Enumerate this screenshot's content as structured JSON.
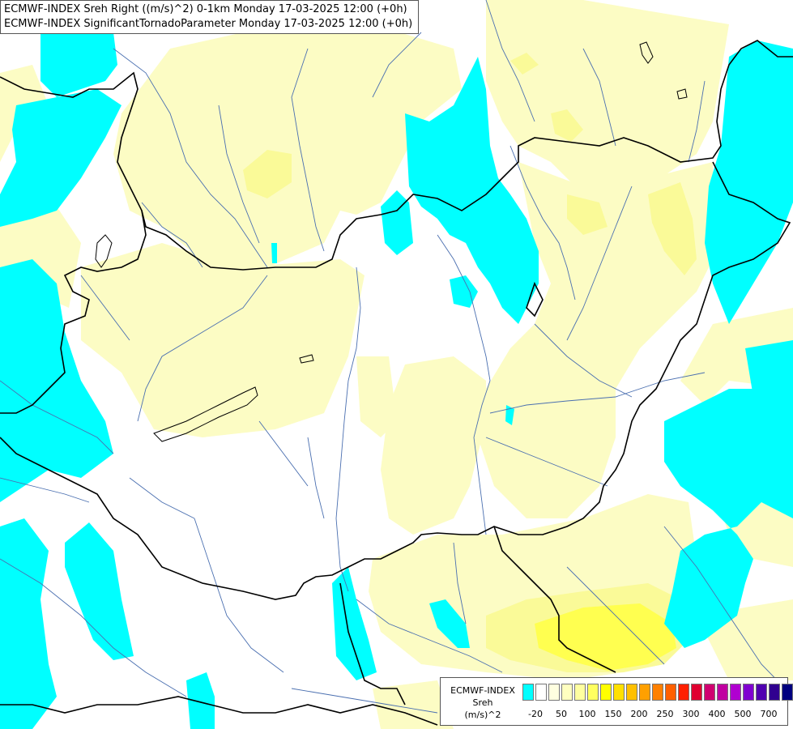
{
  "header": {
    "line1": "ECMWF-INDEX Sreh Right ((m/s)^2) 0-1km Monday 17-03-2025 12:00 (+0h)",
    "line2": "ECMWF-INDEX SignificantTornadoParameter Monday 17-03-2025 12:00 (+0h)"
  },
  "legend": {
    "title_line1": "ECMWF-INDEX",
    "title_line2": "Sreh",
    "title_line3": "(m/s)^2",
    "colors": [
      "#00ffff",
      "#ffffff",
      "#ffffe0",
      "#ffffc0",
      "#ffffa0",
      "#ffff60",
      "#ffff00",
      "#ffe000",
      "#ffc000",
      "#ffa000",
      "#ff8000",
      "#ff6000",
      "#ff2000",
      "#e00030",
      "#d00070",
      "#c000a0",
      "#b000d0",
      "#8000d0",
      "#5000b0",
      "#300090",
      "#000080"
    ],
    "ticks": [
      "-20",
      "50",
      "100",
      "150",
      "200",
      "250",
      "300",
      "400",
      "500",
      "700"
    ]
  },
  "colors": {
    "cyan": "#00ffff",
    "pale_yellow": "#fcfcc4",
    "yellow": "#fafa98",
    "bright_yellow": "#ffff40",
    "border": "#000000",
    "river": "#4a6fb0"
  }
}
